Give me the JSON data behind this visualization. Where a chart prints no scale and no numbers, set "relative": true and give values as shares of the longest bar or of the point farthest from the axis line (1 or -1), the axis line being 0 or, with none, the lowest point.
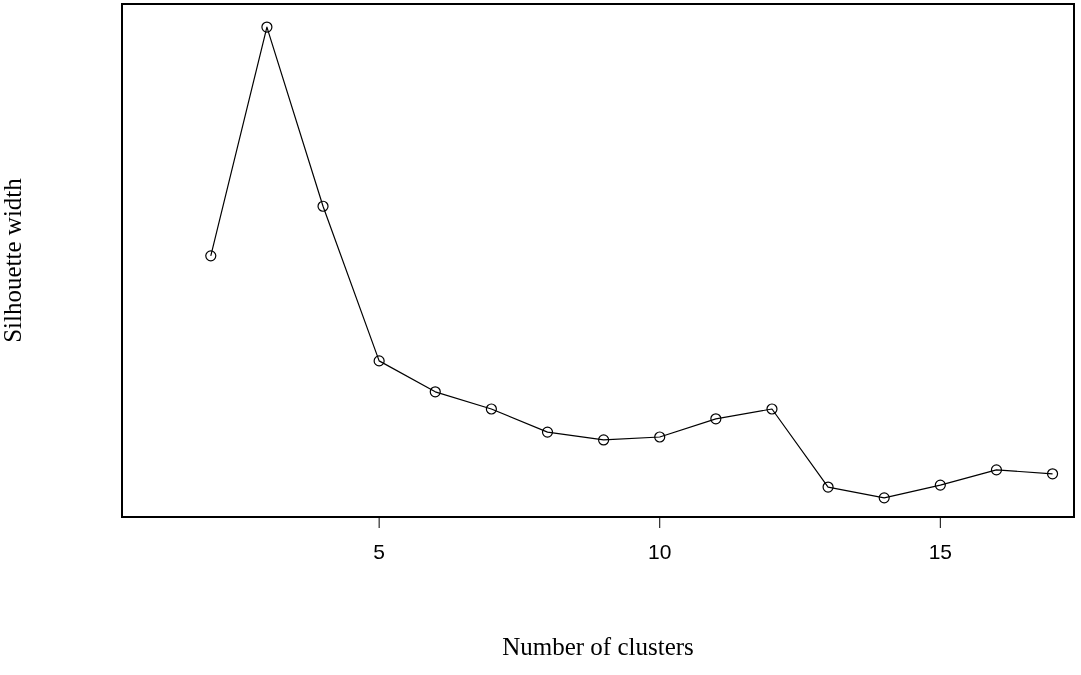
{
  "chart_data": {
    "type": "line",
    "xlabel": "Number of clusters",
    "ylabel": "Silhouette width",
    "relative": true,
    "x": [
      2,
      3,
      4,
      5,
      6,
      7,
      8,
      9,
      10,
      11,
      12,
      13,
      14,
      15,
      16,
      17
    ],
    "series": [
      {
        "color": "#000000",
        "values": [
          0.534,
          1,
          0.635,
          0.32,
          0.257,
          0.222,
          0.175,
          0.159,
          0.165,
          0.202,
          0.222,
          0.063,
          0.041,
          0.067,
          0.098,
          0.09
        ]
      }
    ],
    "xlim": [
      0.4,
      17.4
    ],
    "xticks": [
      5,
      10,
      15
    ],
    "marker": "circle",
    "line_style": "solid"
  }
}
